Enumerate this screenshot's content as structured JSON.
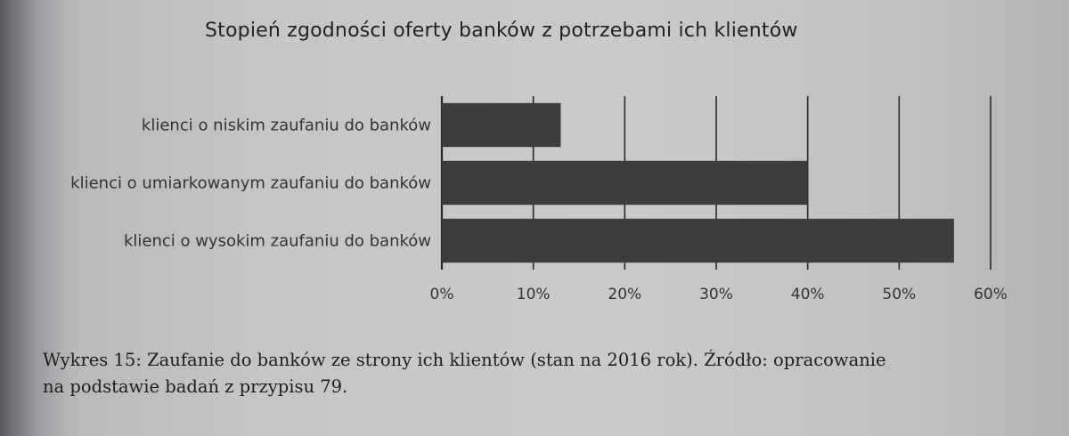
{
  "chart_data": {
    "type": "bar",
    "orientation": "horizontal",
    "title": "Stopień zgodności oferty banków z potrzebami ich klientów",
    "categories": [
      "klienci o niskim zaufaniu do banków",
      "klienci o umiarkowanym zaufaniu do banków",
      "klienci o wysokim zaufaniu do banków"
    ],
    "values": [
      13,
      40,
      56
    ],
    "xlim": [
      0,
      60
    ],
    "xticks": [
      "0%",
      "10%",
      "20%",
      "30%",
      "40%",
      "50%",
      "60%"
    ],
    "grid": "vertical",
    "bar_color": "#3d3d3f",
    "xlabel": "",
    "ylabel": ""
  },
  "caption": {
    "line1": "Wykres 15: Zaufanie do banków ze strony ich klientów (stan na 2016 rok). Źródło: opracowanie",
    "line2": "na podstawie badań z przypisu 79."
  }
}
